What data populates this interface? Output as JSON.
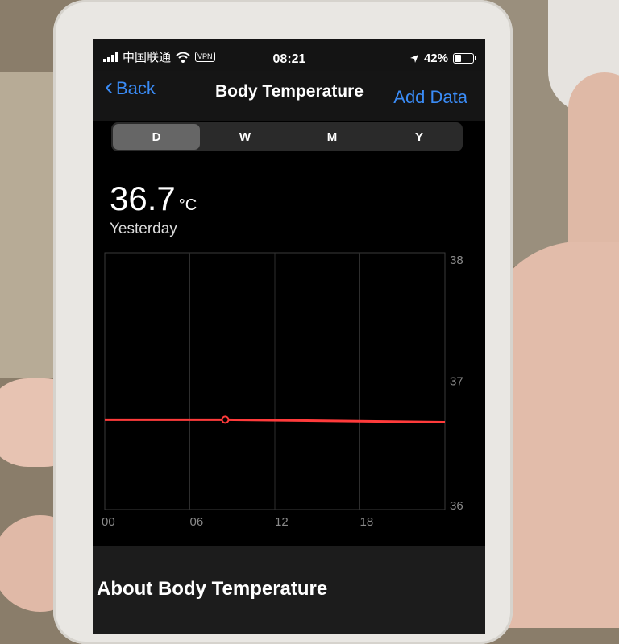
{
  "status_bar": {
    "carrier": "中国联通",
    "vpn": "VPN",
    "time": "08:21",
    "battery": "42%",
    "battery_level": 0.42
  },
  "nav": {
    "back_label": "Back",
    "title": "Body Temperature",
    "add_label": "Add Data"
  },
  "segments": [
    {
      "label": "D",
      "active": true
    },
    {
      "label": "W",
      "active": false
    },
    {
      "label": "M",
      "active": false
    },
    {
      "label": "Y",
      "active": false
    }
  ],
  "reading": {
    "value": "36.7",
    "unit": "°C",
    "period": "Yesterday"
  },
  "chart_data": {
    "type": "line",
    "x_ticks": [
      "00",
      "06",
      "12",
      "18"
    ],
    "y_ticks": [
      "38",
      "37",
      "36"
    ],
    "ylim": [
      36,
      38
    ],
    "xlim": [
      0,
      24
    ],
    "series": [
      {
        "name": "Body Temperature",
        "color": "#ff3b3b",
        "x": [
          0,
          8.5,
          24
        ],
        "values": [
          36.7,
          36.7,
          36.68
        ]
      }
    ],
    "highlight_x": 8.5
  },
  "about": {
    "title": "About Body Temperature"
  }
}
